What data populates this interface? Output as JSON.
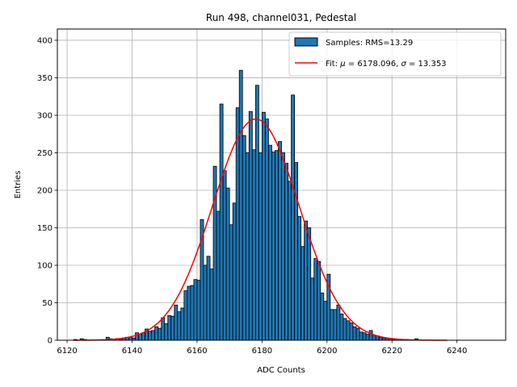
{
  "chart_data": {
    "type": "bar",
    "title": "Run 498, channel031, Pedestal",
    "xlabel": "ADC Counts",
    "ylabel": "Entries",
    "xlim": [
      6117,
      6255
    ],
    "ylim": [
      0,
      415
    ],
    "xticks": [
      6120,
      6140,
      6160,
      6180,
      6200,
      6220,
      6240
    ],
    "yticks": [
      0,
      50,
      100,
      150,
      200,
      250,
      300,
      350,
      400
    ],
    "grid": true,
    "legend_position": "top-right",
    "bin_width": 1,
    "series": [
      {
        "name": "Samples: RMS=13.29",
        "kind": "histogram",
        "color": "#1f77b4",
        "edgecolor": "#000000",
        "bins": [
          [
            6122,
            1
          ],
          [
            6124,
            2
          ],
          [
            6125,
            1
          ],
          [
            6132,
            4
          ],
          [
            6133,
            2
          ],
          [
            6134,
            1
          ],
          [
            6135,
            2
          ],
          [
            6136,
            1
          ],
          [
            6137,
            3
          ],
          [
            6138,
            4
          ],
          [
            6139,
            4
          ],
          [
            6140,
            3
          ],
          [
            6141,
            10
          ],
          [
            6142,
            8
          ],
          [
            6143,
            10
          ],
          [
            6144,
            15
          ],
          [
            6145,
            12
          ],
          [
            6146,
            13
          ],
          [
            6147,
            18
          ],
          [
            6148,
            16
          ],
          [
            6149,
            30
          ],
          [
            6150,
            22
          ],
          [
            6151,
            33
          ],
          [
            6152,
            32
          ],
          [
            6153,
            47
          ],
          [
            6154,
            38
          ],
          [
            6155,
            43
          ],
          [
            6156,
            66
          ],
          [
            6157,
            72
          ],
          [
            6158,
            73
          ],
          [
            6159,
            81
          ],
          [
            6160,
            80
          ],
          [
            6161,
            161
          ],
          [
            6162,
            100
          ],
          [
            6163,
            112
          ],
          [
            6164,
            95
          ],
          [
            6165,
            232
          ],
          [
            6166,
            172
          ],
          [
            6167,
            315
          ],
          [
            6168,
            226
          ],
          [
            6169,
            203
          ],
          [
            6170,
            154
          ],
          [
            6171,
            183
          ],
          [
            6172,
            310
          ],
          [
            6173,
            360
          ],
          [
            6174,
            273
          ],
          [
            6175,
            250
          ],
          [
            6176,
            305
          ],
          [
            6177,
            254
          ],
          [
            6178,
            340
          ],
          [
            6179,
            250
          ],
          [
            6180,
            304
          ],
          [
            6181,
            295
          ],
          [
            6182,
            260
          ],
          [
            6183,
            251
          ],
          [
            6184,
            253
          ],
          [
            6185,
            265
          ],
          [
            6186,
            250
          ],
          [
            6187,
            236
          ],
          [
            6188,
            212
          ],
          [
            6189,
            327
          ],
          [
            6190,
            237
          ],
          [
            6191,
            165
          ],
          [
            6192,
            125
          ],
          [
            6193,
            159
          ],
          [
            6194,
            150
          ],
          [
            6195,
            83
          ],
          [
            6196,
            109
          ],
          [
            6197,
            105
          ],
          [
            6198,
            63
          ],
          [
            6199,
            52
          ],
          [
            6200,
            88
          ],
          [
            6201,
            41
          ],
          [
            6202,
            41
          ],
          [
            6203,
            47
          ],
          [
            6204,
            35
          ],
          [
            6205,
            29
          ],
          [
            6206,
            26
          ],
          [
            6207,
            23
          ],
          [
            6208,
            18
          ],
          [
            6209,
            16
          ],
          [
            6210,
            11
          ],
          [
            6211,
            10
          ],
          [
            6212,
            8
          ],
          [
            6213,
            13
          ],
          [
            6214,
            7
          ],
          [
            6215,
            6
          ],
          [
            6216,
            4
          ],
          [
            6217,
            3
          ],
          [
            6218,
            3
          ],
          [
            6219,
            2
          ],
          [
            6220,
            1
          ],
          [
            6221,
            1
          ],
          [
            6222,
            1
          ],
          [
            6224,
            1
          ],
          [
            6227,
            2
          ]
        ]
      },
      {
        "name": "Fit: μ = 6178.096, σ = 13.353",
        "legend_label_prefix": "Fit: ",
        "mu_symbol": "μ",
        "mu_text": " = 6178.096, ",
        "sigma_symbol": "σ",
        "sigma_text": " = 13.353",
        "kind": "gaussian-fit",
        "color": "#ff0000",
        "mu": 6178.096,
        "sigma": 13.353,
        "amplitude": 295,
        "x_range": [
          6122,
          6237
        ]
      }
    ]
  }
}
